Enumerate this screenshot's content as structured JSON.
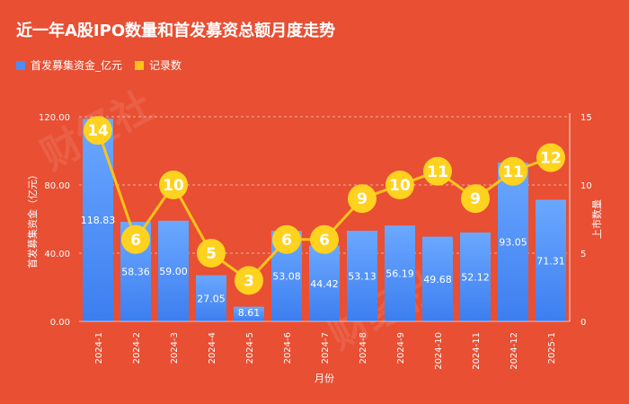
{
  "title": "近一年A股IPO数量和首发募资总额月度走势",
  "legend": {
    "bars_label": "首发募集资金_亿元",
    "line_label": "记录数"
  },
  "colors": {
    "background": "#e84f33",
    "bar_top": "#6aa8ff",
    "bar_bottom": "#3d7ef0",
    "line": "#ffc21a",
    "point": "#ffd21f"
  },
  "chart_data": {
    "type": "bar",
    "categories": [
      "2024-1",
      "2024-2",
      "2024-3",
      "2024-4",
      "2024-5",
      "2024-6",
      "2024-7",
      "2024-8",
      "2024-9",
      "2024-10",
      "2024-11",
      "2024-12",
      "2025-1"
    ],
    "series": [
      {
        "name": "首发募集资金_亿元",
        "type": "bar",
        "axis": "left",
        "values": [
          118.83,
          58.36,
          59.0,
          27.05,
          8.61,
          53.08,
          44.42,
          53.13,
          56.19,
          49.68,
          52.12,
          93.05,
          71.31
        ],
        "labels": [
          "118.83",
          "58.36",
          "59.00",
          "27.05",
          "8.61",
          "53.08",
          "44.42",
          "53.13",
          "56.19",
          "49.68",
          "52.12",
          "93.05",
          "71.31"
        ]
      },
      {
        "name": "记录数",
        "type": "line",
        "axis": "right",
        "values": [
          14,
          6,
          10,
          5,
          3,
          6,
          6,
          9,
          10,
          11,
          9,
          11,
          12
        ],
        "labels": [
          "14",
          "6",
          "10",
          "5",
          "3",
          "6",
          "6",
          "9",
          "10",
          "11",
          "9",
          "11",
          "12"
        ]
      }
    ],
    "xlabel": "月份",
    "ylabel": "首发募集资金（亿元）",
    "y2label": "上市数量",
    "ylim": [
      0,
      120
    ],
    "y2lim": [
      0,
      15
    ],
    "yticks": [
      "0.00",
      "40.00",
      "80.00",
      "120.00"
    ],
    "y2ticks": [
      "0",
      "5",
      "10",
      "15"
    ],
    "grid": true,
    "legend_position": "top-left"
  }
}
